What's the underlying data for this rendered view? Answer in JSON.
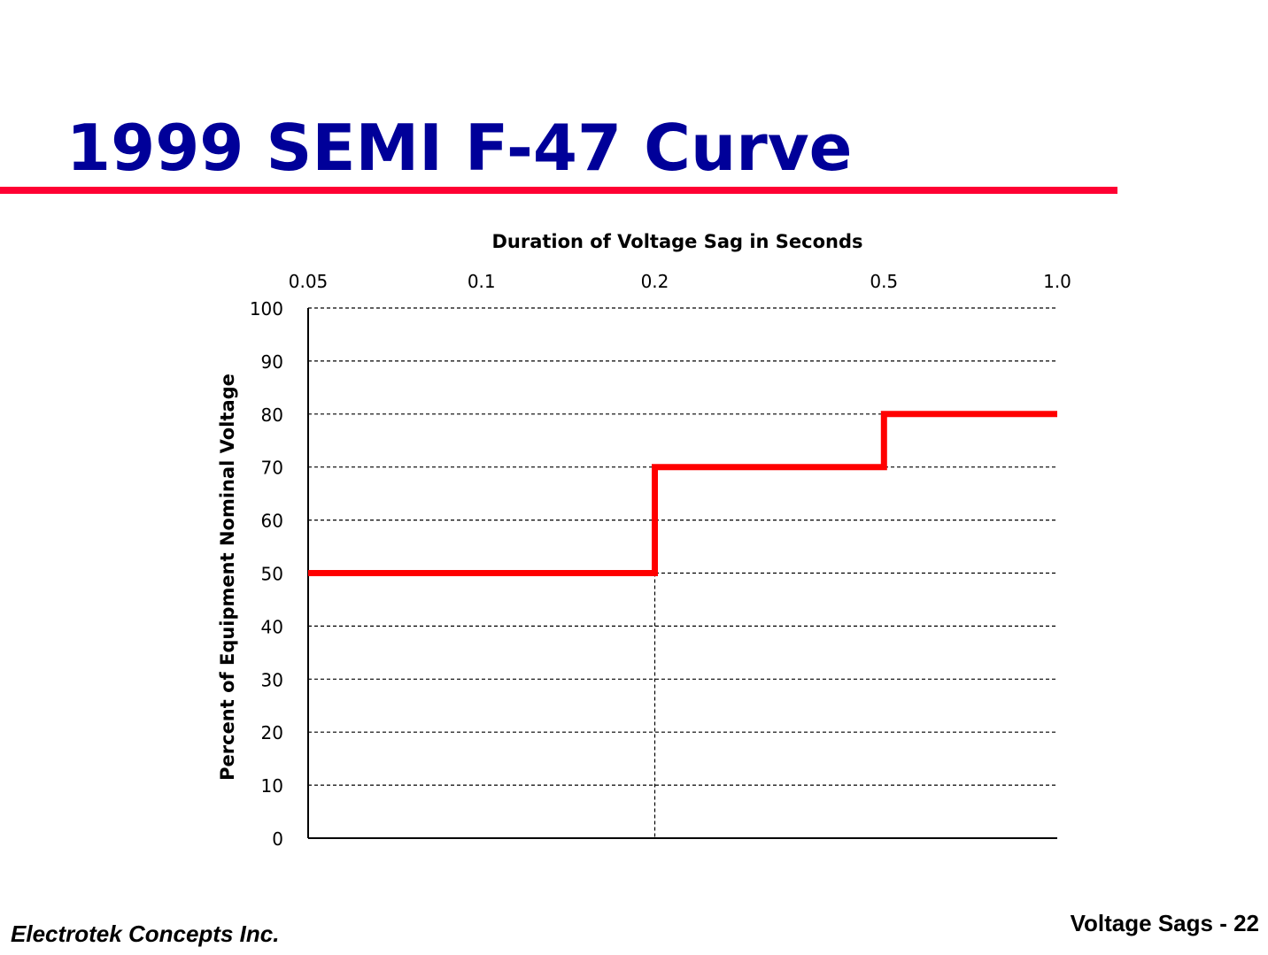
{
  "slide": {
    "title": "1999 SEMI F-47 Curve",
    "footer_left": "Electrotek Concepts Inc.",
    "footer_right": "Voltage Sags - 22",
    "title_color": "#000099",
    "rule_color": "#ff0033"
  },
  "chart_data": {
    "type": "line",
    "step": true,
    "title": "",
    "xlabel": "Duration of Voltage Sag in Seconds",
    "ylabel": "Percent of Equipment Nominal Voltage",
    "x_axis_position": "top",
    "xscale": "log",
    "x_ticks": [
      0.05,
      0.1,
      0.2,
      0.5,
      1.0
    ],
    "x_tick_labels": [
      "0.05",
      "0.1",
      "0.2",
      "0.5",
      "1.0"
    ],
    "xlim": [
      0.05,
      1.0
    ],
    "ylim": [
      0,
      100
    ],
    "y_ticks": [
      0,
      10,
      20,
      30,
      40,
      50,
      60,
      70,
      80,
      90,
      100
    ],
    "y_tick_labels": [
      "0",
      "10",
      "20",
      "30",
      "40",
      "50",
      "60",
      "70",
      "80",
      "90",
      "100"
    ],
    "grid": "horizontal dashed",
    "reference_lines": [
      {
        "axis": "x",
        "value": 0.2,
        "style": "dashed"
      }
    ],
    "series": [
      {
        "color": "#ff0000",
        "x": [
          0.05,
          0.2,
          0.2,
          0.5,
          0.5,
          1.0
        ],
        "y": [
          50,
          50,
          70,
          70,
          80,
          80
        ]
      }
    ]
  }
}
